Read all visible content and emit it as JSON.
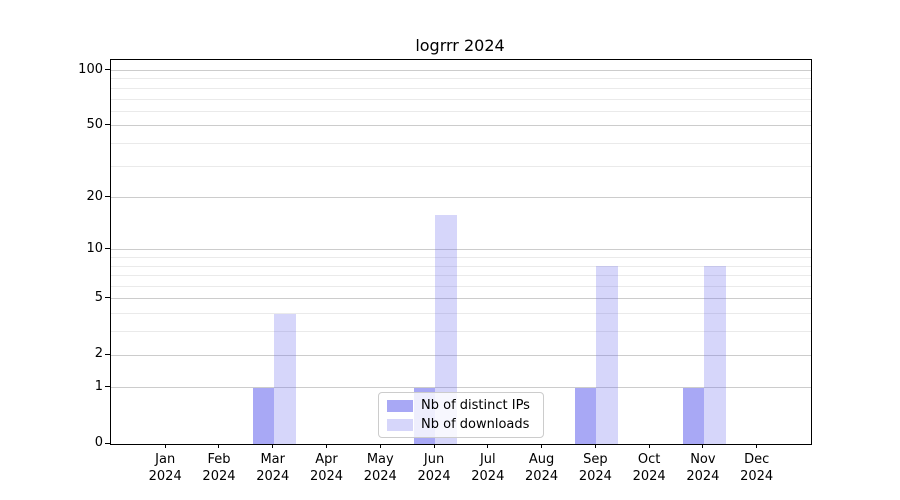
{
  "chart_data": {
    "type": "bar",
    "title": "logrrr 2024",
    "categories": [
      "Jan",
      "Feb",
      "Mar",
      "Apr",
      "May",
      "Jun",
      "Jul",
      "Aug",
      "Sep",
      "Oct",
      "Nov",
      "Dec"
    ],
    "category_year": "2024",
    "series": [
      {
        "name": "Nb of distinct IPs",
        "color": "rgba(102,102,238,0.57)",
        "values": [
          0,
          0,
          1,
          0,
          0,
          1,
          0,
          0,
          1,
          0,
          1,
          0
        ]
      },
      {
        "name": "Nb of downloads",
        "color": "rgba(102,102,238,0.27)",
        "values": [
          0,
          0,
          4,
          0,
          0,
          16,
          0,
          0,
          8,
          0,
          8,
          0
        ]
      }
    ],
    "yscale": "log1p",
    "ylim": [
      0,
      114
    ],
    "yticks": [
      100,
      50,
      20,
      10,
      5,
      2,
      1,
      0
    ],
    "minor_yticks": [
      3,
      4,
      6,
      7,
      8,
      9,
      30,
      40,
      60,
      70,
      80,
      90
    ],
    "xlabel": "",
    "ylabel": "",
    "grid": "horizontal",
    "legend_position": "lower center"
  },
  "colors": {
    "grid_major": "#cccccc",
    "grid_minor": "#eaeaea",
    "axis": "#000000",
    "background": "#ffffff"
  }
}
